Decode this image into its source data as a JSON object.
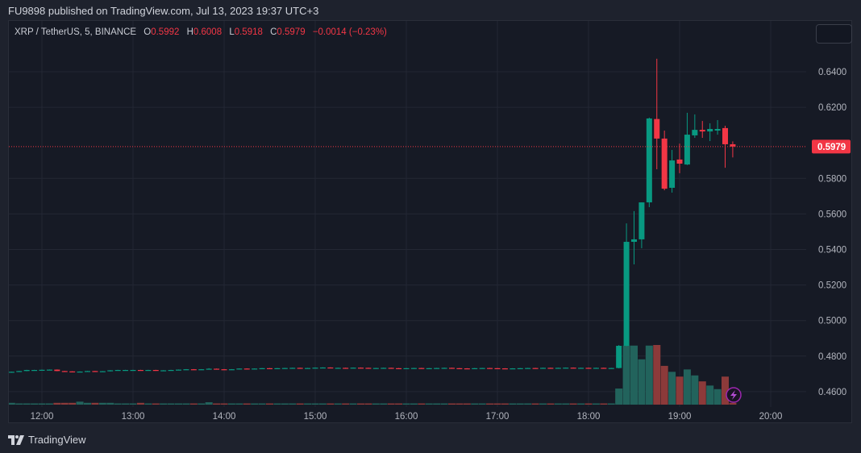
{
  "header": {
    "published": "FU9898 published on TradingView.com, Jul 13, 2023 19:37 UTC+3"
  },
  "legend": {
    "symbol": "XRP / TetherUS, 5, BINANCE",
    "o_label": "O",
    "o": "0.5992",
    "h_label": "H",
    "h": "0.6008",
    "l_label": "L",
    "l": "0.5918",
    "c_label": "C",
    "c": "0.5979",
    "change": "−0.0014 (−0.23%)"
  },
  "footer": {
    "brand": "TradingView"
  },
  "colors": {
    "up": "#089981",
    "down": "#f23645",
    "volume_up": "#22635c",
    "volume_down": "#8c3a3a",
    "background": "#161a25",
    "grid": "#232734",
    "last_price": "#f23645",
    "marker": "#9c27b0"
  },
  "icons": {
    "marker": "lightning-icon",
    "logo": "tradingview-logo"
  },
  "chart_data": {
    "type": "candlestick",
    "interval": "5",
    "price_ticks": [
      "0.6400",
      "0.6200",
      "0.5800",
      "0.5600",
      "0.5400",
      "0.5200",
      "0.5000",
      "0.4800",
      "0.4600"
    ],
    "time_ticks": [
      "12:00",
      "13:00",
      "14:00",
      "15:00",
      "16:00",
      "17:00",
      "18:00",
      "19:00",
      "20:00"
    ],
    "ylim": [
      0.452,
      0.6584
    ],
    "xlim": [
      "11:38",
      "20:55"
    ],
    "grid": true,
    "last_price": "0.5979",
    "volume_scale": "relative (max = 100)",
    "candle_fields": [
      "time",
      "open",
      "high",
      "low",
      "close",
      "volume"
    ],
    "candles": [
      [
        "11:40",
        0.4708,
        0.4713,
        0.4707,
        0.4712,
        3
      ],
      [
        "11:45",
        0.4712,
        0.4717,
        0.4711,
        0.4716,
        2
      ],
      [
        "11:50",
        0.4716,
        0.4723,
        0.4715,
        0.4722,
        2
      ],
      [
        "11:55",
        0.4722,
        0.4723,
        0.4721,
        0.4722,
        2
      ],
      [
        "12:00",
        0.4722,
        0.4724,
        0.4721,
        0.4723,
        2
      ],
      [
        "12:05",
        0.4723,
        0.4725,
        0.4722,
        0.4724,
        2
      ],
      [
        "12:10",
        0.4724,
        0.4725,
        0.4715,
        0.4716,
        3
      ],
      [
        "12:15",
        0.4716,
        0.4717,
        0.4713,
        0.4714,
        3
      ],
      [
        "12:20",
        0.4714,
        0.4715,
        0.4711,
        0.4712,
        3
      ],
      [
        "12:25",
        0.4712,
        0.4714,
        0.4711,
        0.4713,
        5
      ],
      [
        "12:30",
        0.4713,
        0.4717,
        0.4712,
        0.4716,
        3
      ],
      [
        "12:35",
        0.4716,
        0.4717,
        0.4711,
        0.4712,
        3
      ],
      [
        "12:40",
        0.4712,
        0.4716,
        0.4711,
        0.4715,
        3
      ],
      [
        "12:45",
        0.4715,
        0.4721,
        0.4714,
        0.472,
        3
      ],
      [
        "12:50",
        0.472,
        0.4723,
        0.4719,
        0.4722,
        2
      ],
      [
        "12:55",
        0.4722,
        0.4723,
        0.4721,
        0.4722,
        2
      ],
      [
        "13:00",
        0.4722,
        0.4723,
        0.4721,
        0.4722,
        2
      ],
      [
        "13:05",
        0.4722,
        0.4723,
        0.4719,
        0.472,
        3
      ],
      [
        "13:10",
        0.472,
        0.4723,
        0.4719,
        0.4722,
        2
      ],
      [
        "13:15",
        0.4722,
        0.4723,
        0.4717,
        0.4718,
        2
      ],
      [
        "13:20",
        0.4718,
        0.4721,
        0.4717,
        0.472,
        2
      ],
      [
        "13:25",
        0.472,
        0.4723,
        0.4719,
        0.4722,
        2
      ],
      [
        "13:30",
        0.4722,
        0.4725,
        0.4721,
        0.4724,
        2
      ],
      [
        "13:35",
        0.4724,
        0.4727,
        0.4723,
        0.4726,
        2
      ],
      [
        "13:40",
        0.4726,
        0.4727,
        0.4723,
        0.4724,
        2
      ],
      [
        "13:45",
        0.4724,
        0.4727,
        0.4723,
        0.4726,
        2
      ],
      [
        "13:50",
        0.4726,
        0.4732,
        0.4725,
        0.4729,
        4
      ],
      [
        "13:55",
        0.4729,
        0.473,
        0.4725,
        0.4726,
        2
      ],
      [
        "14:00",
        0.4726,
        0.4727,
        0.4723,
        0.4724,
        2
      ],
      [
        "14:05",
        0.4724,
        0.4727,
        0.4723,
        0.4726,
        2
      ],
      [
        "14:10",
        0.4726,
        0.4731,
        0.4725,
        0.473,
        2
      ],
      [
        "14:15",
        0.473,
        0.4731,
        0.4727,
        0.4728,
        2
      ],
      [
        "14:20",
        0.4728,
        0.4731,
        0.4727,
        0.473,
        2
      ],
      [
        "14:25",
        0.473,
        0.4733,
        0.4729,
        0.4732,
        2
      ],
      [
        "14:30",
        0.4732,
        0.4733,
        0.4729,
        0.473,
        2
      ],
      [
        "14:35",
        0.473,
        0.4733,
        0.4729,
        0.4732,
        2
      ],
      [
        "14:40",
        0.4732,
        0.4734,
        0.4731,
        0.4733,
        2
      ],
      [
        "14:45",
        0.4733,
        0.4735,
        0.4732,
        0.4734,
        2
      ],
      [
        "14:50",
        0.4734,
        0.4735,
        0.4731,
        0.4732,
        2
      ],
      [
        "14:55",
        0.4732,
        0.4734,
        0.4731,
        0.4733,
        2
      ],
      [
        "15:00",
        0.4733,
        0.4736,
        0.4732,
        0.4735,
        2
      ],
      [
        "15:05",
        0.4735,
        0.4737,
        0.4734,
        0.4736,
        2
      ],
      [
        "15:10",
        0.4736,
        0.4737,
        0.4733,
        0.4734,
        2
      ],
      [
        "15:15",
        0.4734,
        0.4735,
        0.4733,
        0.4734,
        2
      ],
      [
        "15:20",
        0.4734,
        0.4735,
        0.4732,
        0.4733,
        2
      ],
      [
        "15:25",
        0.4733,
        0.4736,
        0.4732,
        0.4735,
        2
      ],
      [
        "15:30",
        0.4735,
        0.4736,
        0.4733,
        0.4734,
        2
      ],
      [
        "15:35",
        0.4734,
        0.4735,
        0.4731,
        0.4732,
        2
      ],
      [
        "15:40",
        0.4732,
        0.4734,
        0.4731,
        0.4733,
        2
      ],
      [
        "15:45",
        0.4733,
        0.4735,
        0.4732,
        0.4734,
        2
      ],
      [
        "15:50",
        0.4734,
        0.4735,
        0.4731,
        0.4732,
        2
      ],
      [
        "15:55",
        0.4732,
        0.4733,
        0.4729,
        0.473,
        2
      ],
      [
        "16:00",
        0.473,
        0.4733,
        0.4729,
        0.4732,
        2
      ],
      [
        "16:05",
        0.4732,
        0.4734,
        0.4731,
        0.4733,
        2
      ],
      [
        "16:10",
        0.4733,
        0.4734,
        0.473,
        0.4731,
        2
      ],
      [
        "16:15",
        0.4731,
        0.4733,
        0.473,
        0.4732,
        2
      ],
      [
        "16:20",
        0.4732,
        0.4734,
        0.4731,
        0.4733,
        2
      ],
      [
        "16:25",
        0.4733,
        0.4735,
        0.4732,
        0.4734,
        2
      ],
      [
        "16:30",
        0.4734,
        0.4735,
        0.4731,
        0.4732,
        2
      ],
      [
        "16:35",
        0.4732,
        0.4733,
        0.473,
        0.4731,
        2
      ],
      [
        "16:40",
        0.4731,
        0.4732,
        0.4729,
        0.473,
        2
      ],
      [
        "16:45",
        0.473,
        0.4733,
        0.4729,
        0.4732,
        2
      ],
      [
        "16:50",
        0.4732,
        0.4734,
        0.4731,
        0.4733,
        2
      ],
      [
        "16:55",
        0.4733,
        0.4734,
        0.4731,
        0.4732,
        2
      ],
      [
        "17:00",
        0.4732,
        0.4733,
        0.473,
        0.4731,
        2
      ],
      [
        "17:05",
        0.4731,
        0.4732,
        0.4729,
        0.473,
        2
      ],
      [
        "17:10",
        0.473,
        0.4732,
        0.4729,
        0.4731,
        2
      ],
      [
        "17:15",
        0.4731,
        0.4733,
        0.473,
        0.4732,
        2
      ],
      [
        "17:20",
        0.4732,
        0.4734,
        0.4731,
        0.4733,
        2
      ],
      [
        "17:25",
        0.4733,
        0.4734,
        0.4731,
        0.4732,
        2
      ],
      [
        "17:30",
        0.4732,
        0.4735,
        0.4731,
        0.4734,
        2
      ],
      [
        "17:35",
        0.4734,
        0.4735,
        0.4732,
        0.4733,
        2
      ],
      [
        "17:40",
        0.4733,
        0.4735,
        0.4732,
        0.4734,
        2
      ],
      [
        "17:45",
        0.4734,
        0.4736,
        0.4733,
        0.4735,
        2
      ],
      [
        "17:50",
        0.4735,
        0.4736,
        0.4732,
        0.4733,
        2
      ],
      [
        "17:55",
        0.4733,
        0.4735,
        0.4732,
        0.4734,
        2
      ],
      [
        "18:00",
        0.4734,
        0.4735,
        0.4732,
        0.4733,
        2
      ],
      [
        "18:05",
        0.4733,
        0.4735,
        0.4732,
        0.4734,
        2
      ],
      [
        "18:10",
        0.4734,
        0.4735,
        0.4731,
        0.4732,
        2
      ],
      [
        "18:15",
        0.4732,
        0.4734,
        0.4731,
        0.4733,
        2
      ],
      [
        "18:20",
        0.4733,
        0.4862,
        0.4731,
        0.4858,
        27
      ],
      [
        "18:25",
        0.4858,
        0.5547,
        0.4855,
        0.5443,
        99
      ],
      [
        "18:30",
        0.5443,
        0.5616,
        0.5316,
        0.5457,
        99
      ],
      [
        "18:35",
        0.5457,
        0.5665,
        0.5407,
        0.5665,
        76
      ],
      [
        "18:40",
        0.5665,
        0.6142,
        0.5638,
        0.6137,
        99
      ],
      [
        "18:45",
        0.6134,
        0.6473,
        0.5851,
        0.6024,
        100
      ],
      [
        "18:50",
        0.6024,
        0.6069,
        0.5733,
        0.5742,
        65
      ],
      [
        "18:55",
        0.5747,
        0.596,
        0.572,
        0.5901,
        55
      ],
      [
        "19:00",
        0.5906,
        0.5996,
        0.5829,
        0.5883,
        47
      ],
      [
        "19:05",
        0.5878,
        0.6169,
        0.5875,
        0.6046,
        59
      ],
      [
        "19:10",
        0.6042,
        0.616,
        0.6028,
        0.6073,
        49
      ],
      [
        "19:15",
        0.6073,
        0.6123,
        0.6028,
        0.6064,
        39
      ],
      [
        "19:20",
        0.6064,
        0.611,
        0.601,
        0.6078,
        32
      ],
      [
        "19:25",
        0.6069,
        0.6128,
        0.6046,
        0.6078,
        26
      ],
      [
        "19:30",
        0.6083,
        0.6096,
        0.586,
        0.5992,
        47
      ],
      [
        "19:35",
        0.5992,
        0.6008,
        0.5918,
        0.5979,
        3
      ]
    ]
  }
}
